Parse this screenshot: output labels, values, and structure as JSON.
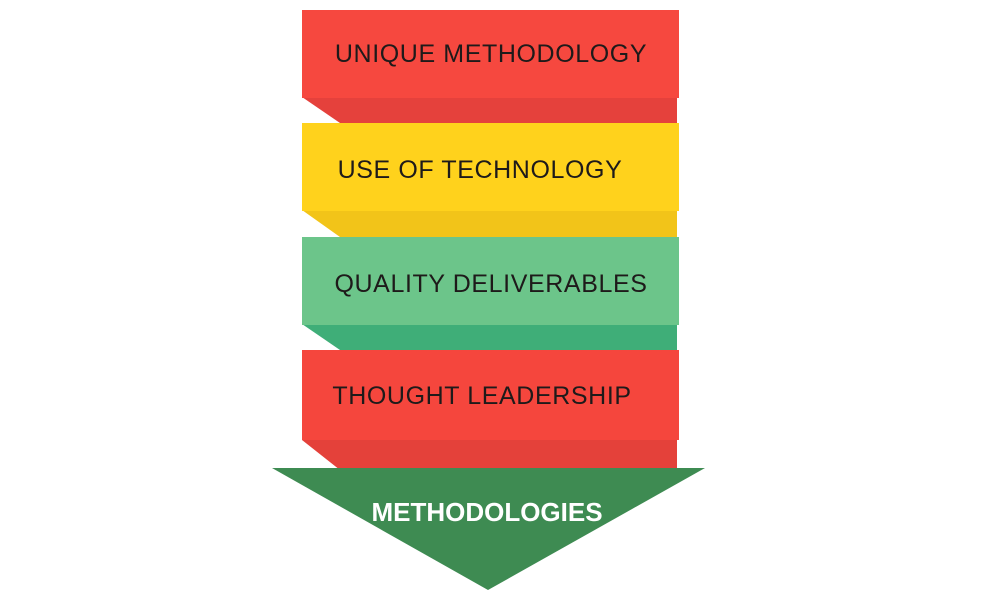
{
  "diagram": {
    "bands": [
      {
        "label": "UNIQUE  METHODOLOGY",
        "color": "#f6483f",
        "fold_color": "#e5413c"
      },
      {
        "label": "USE   OF  TECHNOLOGY",
        "color": "#ffd21c",
        "fold_color": "#f2c419"
      },
      {
        "label": "QUALITY  DELIVERABLES",
        "color": "#6cc58a",
        "fold_color": "#3fae78"
      },
      {
        "label": "THOUGHT  LEADERSHIP",
        "color": "#f5463d",
        "fold_color": "#e4413a"
      }
    ],
    "arrow": {
      "label": "METHODOLOGIES",
      "color": "#3e8b52"
    }
  }
}
